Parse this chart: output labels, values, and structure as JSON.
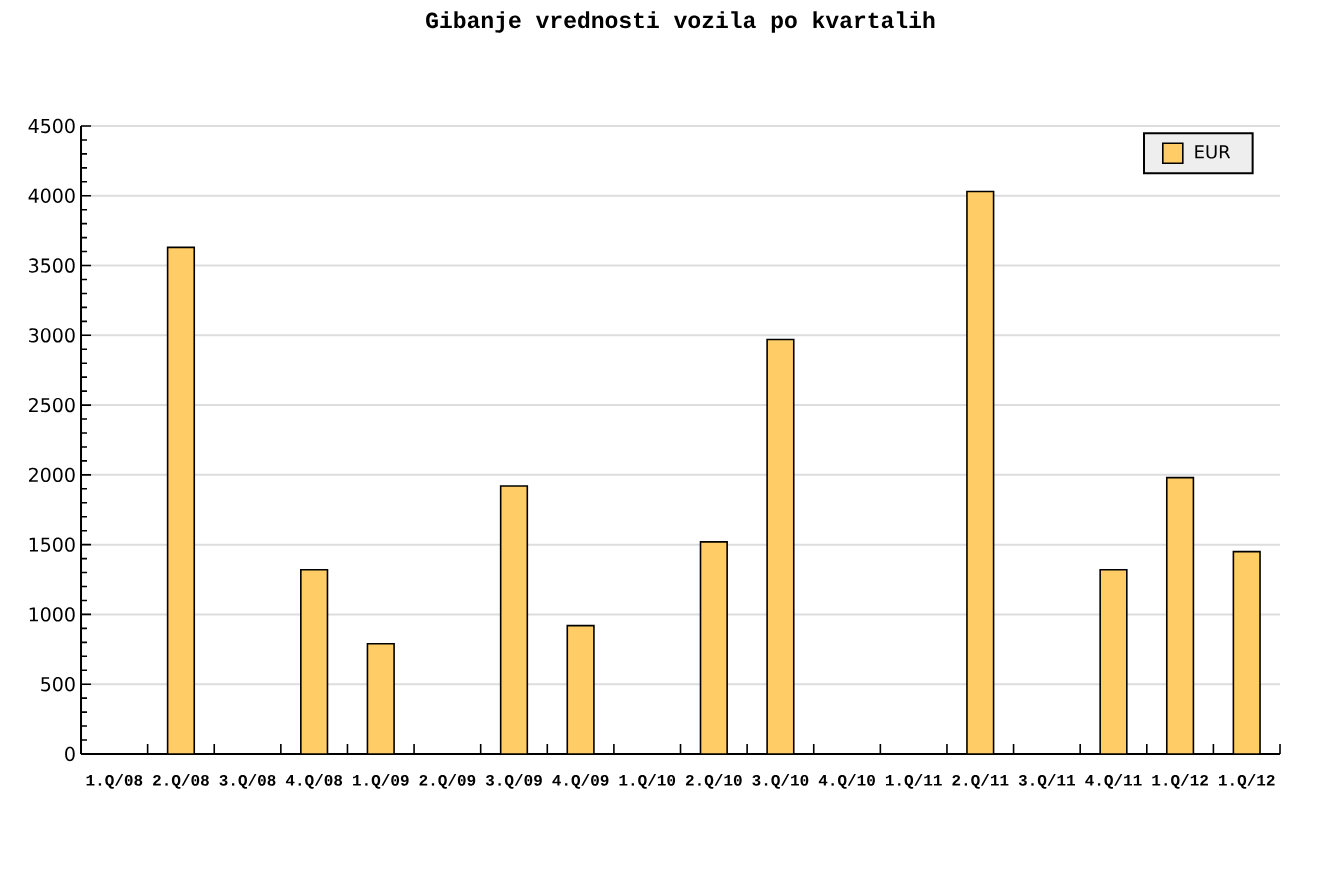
{
  "chart_data": {
    "type": "bar",
    "title": "Gibanje vrednosti vozila po kvartalih",
    "categories": [
      "1.Q/08",
      "2.Q/08",
      "3.Q/08",
      "4.Q/08",
      "1.Q/09",
      "2.Q/09",
      "3.Q/09",
      "4.Q/09",
      "1.Q/10",
      "2.Q/10",
      "3.Q/10",
      "4.Q/10",
      "1.Q/11",
      "2.Q/11",
      "3.Q/11",
      "4.Q/11",
      "1.Q/12",
      "1.Q/12"
    ],
    "series": [
      {
        "name": "EUR",
        "color": "#ffcc66",
        "values": [
          null,
          3630,
          null,
          1320,
          790,
          null,
          1920,
          920,
          null,
          1520,
          2970,
          null,
          null,
          4030,
          null,
          1320,
          1980,
          1450
        ]
      }
    ],
    "ylim": [
      0,
      4500
    ],
    "yticks": [
      0,
      500,
      1000,
      1500,
      2000,
      2500,
      3000,
      3500,
      4000,
      4500
    ],
    "grid": "y",
    "legend": "top right"
  }
}
